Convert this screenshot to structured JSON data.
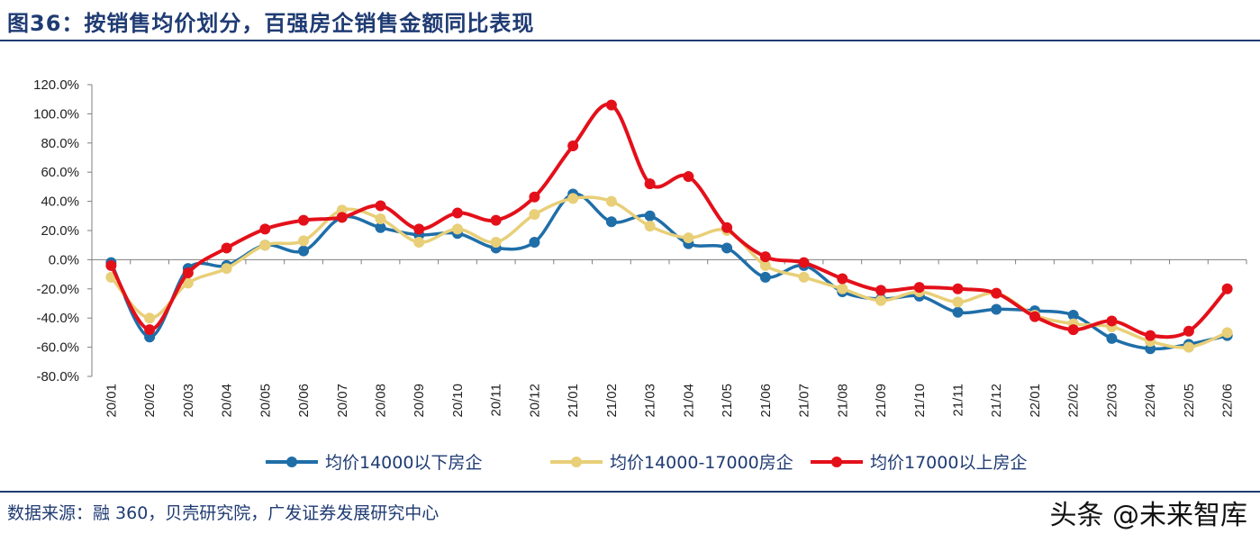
{
  "header": {
    "title": "图36：按销售均价划分，百强房企销售金额同比表现"
  },
  "footer": {
    "source": "数据来源：融 360，贝壳研究院，广发证券发展研究中心",
    "watermark": "头条 @未来智库"
  },
  "chart_data": {
    "type": "line",
    "title": "",
    "xlabel": "",
    "ylabel": "",
    "ylim": [
      -80,
      120
    ],
    "ytick_step": 20,
    "ytick_format": "percent_1dp",
    "grid": false,
    "legend_position": "bottom",
    "categories": [
      "20/01",
      "20/02",
      "20/03",
      "20/04",
      "20/05",
      "20/06",
      "20/07",
      "20/08",
      "20/09",
      "20/10",
      "20/11",
      "20/12",
      "21/01",
      "21/02",
      "21/03",
      "21/04",
      "21/05",
      "21/06",
      "21/07",
      "21/08",
      "21/09",
      "21/10",
      "21/11",
      "21/12",
      "22/01",
      "22/02",
      "22/03",
      "22/04",
      "22/05",
      "22/06"
    ],
    "series": [
      {
        "name": "均价14000以下房企",
        "color": "#1f6ea8",
        "values": [
          -2,
          -53,
          -6,
          -4,
          10,
          6,
          29,
          22,
          17,
          18,
          8,
          12,
          45,
          26,
          30,
          11,
          8,
          -12,
          -4,
          -22,
          -27,
          -25,
          -36,
          -34,
          -35,
          -38,
          -54,
          -61,
          -58,
          -52
        ]
      },
      {
        "name": "均价14000-17000房企",
        "color": "#e8cf78",
        "values": [
          -12,
          -40,
          -16,
          -6,
          10,
          13,
          34,
          28,
          12,
          21,
          12,
          31,
          42,
          40,
          23,
          15,
          20,
          -4,
          -12,
          -20,
          -28,
          -22,
          -29,
          -23,
          -38,
          -44,
          -46,
          -56,
          -60,
          -50
        ]
      },
      {
        "name": "均价17000以上房企",
        "color": "#e3101a",
        "values": [
          -4,
          -48,
          -9,
          8,
          21,
          27,
          29,
          37,
          21,
          32,
          27,
          43,
          78,
          106,
          52,
          57,
          22,
          2,
          -2,
          -13,
          -21,
          -19,
          -20,
          -23,
          -39,
          -48,
          -42,
          -52,
          -49,
          -20
        ]
      }
    ]
  }
}
